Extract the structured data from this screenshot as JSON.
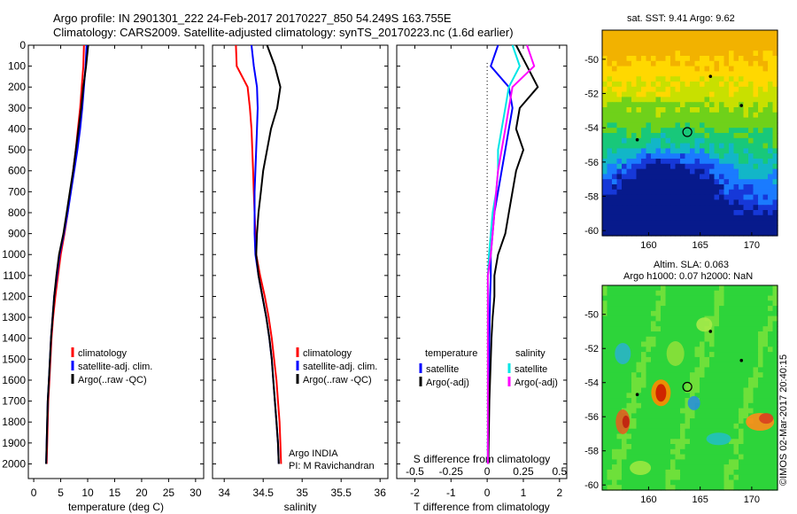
{
  "header": {
    "title_line1": "Argo profile: IN 2901301_222 24-Feb-2017 20170227_850 54.249S 163.755E",
    "title_line2": "Climatology: CARS2009. Satellite-adjusted climatology: synTS_20170223.nc (1.6d earlier)"
  },
  "depth_axis": {
    "ticks": [
      0,
      100,
      200,
      300,
      400,
      500,
      600,
      700,
      800,
      900,
      1000,
      1100,
      1200,
      1300,
      1400,
      1500,
      1600,
      1700,
      1800,
      1900,
      2000
    ],
    "range": [
      0,
      2070
    ]
  },
  "chart_data": [
    {
      "type": "line",
      "id": "temperature",
      "xlabel": "temperature (deg C)",
      "xlim": [
        -1,
        31.5
      ],
      "xticks": [
        0,
        5,
        10,
        15,
        20,
        25,
        30
      ],
      "legend": {
        "placement": "bottom-center",
        "entries": [
          "climatology",
          "satellite-adj. clim.",
          "Argo(..raw -QC)"
        ]
      },
      "series": [
        {
          "name": "climatology",
          "color": "#ff0000",
          "x": [
            9.3,
            9.2,
            8.9,
            8.6,
            8.2,
            7.8,
            7.3,
            6.8,
            6.3,
            5.7,
            5.0,
            4.5,
            4.0,
            3.6,
            3.3,
            3.1,
            2.9,
            2.7,
            2.6,
            2.5,
            2.4
          ],
          "y": [
            0,
            100,
            200,
            300,
            400,
            500,
            600,
            700,
            800,
            900,
            1000,
            1100,
            1200,
            1300,
            1400,
            1500,
            1600,
            1700,
            1800,
            1900,
            2000
          ]
        },
        {
          "name": "satellite-adj. clim.",
          "color": "#0000ff",
          "x": [
            9.8,
            9.6,
            9.3,
            9.0,
            8.6,
            8.1,
            7.5,
            6.9,
            6.3,
            5.6,
            4.8,
            4.3,
            3.8,
            3.5,
            3.2,
            3.0,
            2.8,
            2.6,
            2.5,
            2.4,
            2.3
          ],
          "y": [
            0,
            100,
            200,
            300,
            400,
            500,
            600,
            700,
            800,
            900,
            1000,
            1100,
            1200,
            1300,
            1400,
            1500,
            1600,
            1700,
            1800,
            1900,
            2000
          ]
        },
        {
          "name": "Argo(..raw -QC)",
          "color": "#000000",
          "x": [
            10.1,
            9.7,
            9.2,
            8.8,
            8.3,
            7.8,
            7.3,
            6.7,
            6.1,
            5.5,
            4.7,
            4.2,
            3.8,
            3.5,
            3.2,
            3.0,
            2.8,
            2.6,
            2.5,
            2.4,
            2.3
          ],
          "y": [
            0,
            100,
            200,
            300,
            400,
            500,
            600,
            700,
            800,
            900,
            1000,
            1100,
            1200,
            1300,
            1400,
            1500,
            1600,
            1700,
            1800,
            1900,
            2000
          ]
        }
      ]
    },
    {
      "type": "line",
      "id": "salinity",
      "xlabel": "salinity",
      "xlim": [
        33.85,
        36.1
      ],
      "xticks": [
        34,
        34.5,
        35,
        35.5,
        36
      ],
      "legend": {
        "placement": "bottom-center",
        "entries": [
          "climatology",
          "satellite-adj. clim.",
          "Argo(..raw -QC)"
        ]
      },
      "annotations": [
        "Argo INDIA",
        "PI: M Ravichandran"
      ],
      "series": [
        {
          "name": "climatology",
          "color": "#ff0000",
          "x": [
            34.15,
            34.16,
            34.3,
            34.33,
            34.35,
            34.36,
            34.37,
            34.38,
            34.39,
            34.4,
            34.41,
            34.46,
            34.52,
            34.57,
            34.61,
            34.64,
            34.67,
            34.69,
            34.71,
            34.72,
            34.73
          ],
          "y": [
            0,
            100,
            200,
            300,
            400,
            500,
            600,
            700,
            800,
            900,
            1000,
            1100,
            1200,
            1300,
            1400,
            1500,
            1600,
            1700,
            1800,
            1900,
            2000
          ]
        },
        {
          "name": "satellite-adj. clim.",
          "color": "#0000ff",
          "x": [
            34.35,
            34.38,
            34.42,
            34.43,
            34.42,
            34.41,
            34.4,
            34.39,
            34.39,
            34.39,
            34.4,
            34.44,
            34.49,
            34.54,
            34.58,
            34.61,
            34.63,
            34.65,
            34.67,
            34.69,
            34.7
          ],
          "y": [
            0,
            100,
            200,
            300,
            400,
            500,
            600,
            700,
            800,
            900,
            1000,
            1100,
            1200,
            1300,
            1400,
            1500,
            1600,
            1700,
            1800,
            1900,
            2000
          ]
        },
        {
          "name": "Argo(..raw -QC)",
          "color": "#000000",
          "x": [
            34.55,
            34.65,
            34.72,
            34.68,
            34.6,
            34.55,
            34.5,
            34.47,
            34.44,
            34.42,
            34.41,
            34.44,
            34.49,
            34.54,
            34.58,
            34.61,
            34.63,
            34.65,
            34.67,
            34.69,
            34.7
          ],
          "y": [
            0,
            100,
            200,
            300,
            400,
            500,
            600,
            700,
            800,
            900,
            1000,
            1100,
            1200,
            1300,
            1400,
            1500,
            1600,
            1700,
            1800,
            1900,
            2000
          ]
        }
      ]
    },
    {
      "type": "line",
      "id": "difference",
      "xlabel": "T difference from climatology",
      "xlabel2": "S difference from climatology",
      "xlim": [
        -2.5,
        2.2
      ],
      "xticks": [
        -2,
        -1,
        0,
        1,
        2
      ],
      "xticks_top": [
        "-0.5",
        "-0.25",
        "0",
        "0.25",
        "0.5"
      ],
      "legend": {
        "placement": "bottom",
        "entries": [
          "temperature",
          "satellite",
          "Argo(-adj)",
          "salinity",
          "satellite",
          "Argo(-adj)"
        ]
      },
      "series": [
        {
          "name": "temperature satellite",
          "color": "#0000ff",
          "x": [
            0.3,
            0.1,
            0.6,
            0.7,
            0.6,
            0.5,
            0.4,
            0.3,
            0.2,
            0.15,
            0.1,
            0.1,
            0.08,
            0.07,
            0.06,
            0.05,
            0.04,
            0.03,
            0.03,
            0.02,
            0.02
          ],
          "y": [
            0,
            100,
            200,
            300,
            400,
            500,
            600,
            700,
            800,
            900,
            1000,
            1100,
            1200,
            1300,
            1400,
            1500,
            1600,
            1700,
            1800,
            1900,
            2000
          ]
        },
        {
          "name": "temperature Argo(-adj)",
          "color": "#000000",
          "x": [
            0.8,
            1.1,
            1.4,
            0.9,
            0.8,
            1.0,
            0.8,
            0.7,
            0.6,
            0.5,
            0.3,
            0.2,
            0.2,
            0.15,
            0.12,
            0.1,
            0.08,
            0.06,
            0.05,
            0.04,
            0.03
          ],
          "y": [
            0,
            100,
            200,
            300,
            400,
            500,
            600,
            700,
            800,
            900,
            1000,
            1100,
            1200,
            1300,
            1400,
            1500,
            1600,
            1700,
            1800,
            1900,
            2000
          ]
        },
        {
          "name": "salinity satellite",
          "color": "#00e5e5",
          "x": [
            0.7,
            0.9,
            0.6,
            0.5,
            0.4,
            0.3,
            0.3,
            0.25,
            0.15,
            0.1,
            0.05,
            0.02,
            0.02,
            0.02,
            0.02,
            0.02,
            0.02,
            0.02,
            0.02,
            0.02,
            0.02
          ],
          "y": [
            0,
            100,
            200,
            300,
            400,
            500,
            600,
            700,
            800,
            900,
            1000,
            1100,
            1200,
            1300,
            1400,
            1500,
            1600,
            1700,
            1800,
            1900,
            2000
          ]
        },
        {
          "name": "salinity Argo(-adj)",
          "color": "#ff00ff",
          "x": [
            1.1,
            1.3,
            0.7,
            0.6,
            0.5,
            0.4,
            0.3,
            0.25,
            0.2,
            0.15,
            0.1,
            0.02,
            0.02,
            0.02,
            0.02,
            0.02,
            0.02,
            0.02,
            0.02,
            0.02,
            0.02
          ],
          "y": [
            0,
            100,
            200,
            300,
            400,
            500,
            600,
            700,
            800,
            900,
            1000,
            1100,
            1200,
            1300,
            1400,
            1500,
            1600,
            1700,
            1800,
            1900,
            2000
          ]
        }
      ]
    },
    {
      "type": "heatmap",
      "id": "sst_map",
      "title": "sat. SST: 9.41  Argo: 9.62",
      "xticks": [
        160,
        165,
        170
      ],
      "yticks": [
        -50,
        -52,
        -54,
        -56,
        -58,
        -60
      ],
      "xlim": [
        155.5,
        172.5
      ],
      "ylim": [
        -60.3,
        -48.3
      ],
      "marker": {
        "lon": 163.755,
        "lat": -54.249
      }
    },
    {
      "type": "heatmap",
      "id": "sla_map",
      "title_line1": "Altim. SLA: 0.063",
      "title_line2": "Argo h1000: 0.07 h2000: NaN",
      "xticks": [
        160,
        165,
        170
      ],
      "yticks": [
        -50,
        -52,
        -54,
        -56,
        -58,
        -60
      ],
      "xlim": [
        155.5,
        172.5
      ],
      "ylim": [
        -60.3,
        -48.3
      ],
      "marker": {
        "lon": 163.755,
        "lat": -54.249
      }
    }
  ],
  "footer": {
    "credit": "©IMOS 02-Mar-2017 20:40:15"
  },
  "colors": {
    "climatology": "#ff0000",
    "satellite": "#0000ff",
    "argo": "#000000",
    "salinity_satellite": "#00e5e5",
    "salinity_argo": "#ff00ff"
  }
}
